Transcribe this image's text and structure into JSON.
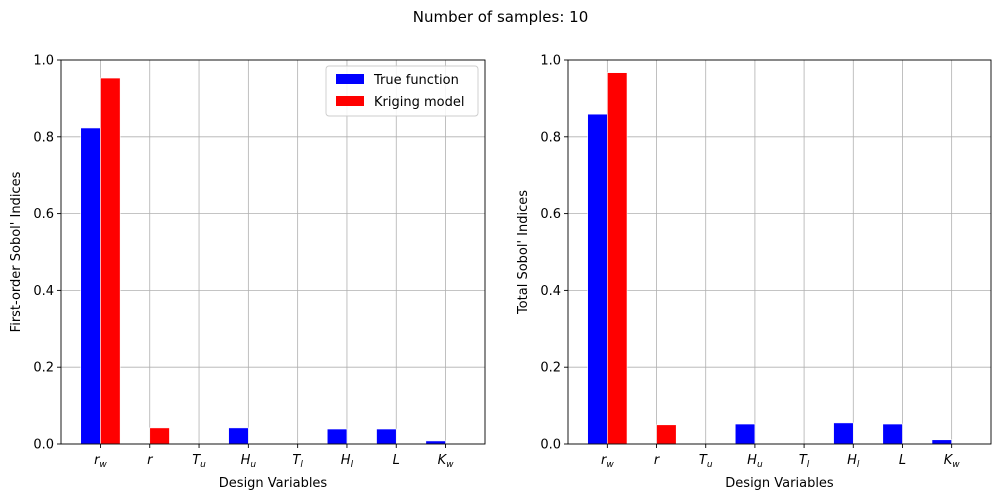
{
  "figure": {
    "title": "Number of samples: 10"
  },
  "chart_data": [
    {
      "type": "bar",
      "ylabel": "First-order Sobol' Indices",
      "xlabel": "Design Variables",
      "ylim": [
        0,
        1.0
      ],
      "yticks": [
        "0.0",
        "0.2",
        "0.4",
        "0.6",
        "0.8",
        "1.0"
      ],
      "categories": [
        {
          "base": "r",
          "sub": "w"
        },
        {
          "base": "r",
          "sub": ""
        },
        {
          "base": "T",
          "sub": "u"
        },
        {
          "base": "H",
          "sub": "u"
        },
        {
          "base": "T",
          "sub": "l"
        },
        {
          "base": "H",
          "sub": "l"
        },
        {
          "base": "L",
          "sub": ""
        },
        {
          "base": "K",
          "sub": "w"
        }
      ],
      "series": [
        {
          "name": "True function",
          "color": "#0000ff",
          "values": [
            0.823,
            0.0,
            0.0,
            0.042,
            0.0,
            0.039,
            0.039,
            0.008
          ]
        },
        {
          "name": "Kriging model",
          "color": "#ff0000",
          "values": [
            0.953,
            0.042,
            0.0,
            0.0,
            0.0,
            0.0,
            0.0,
            0.0
          ]
        }
      ],
      "grid": true,
      "legend": "top-right"
    },
    {
      "type": "bar",
      "ylabel": "Total Sobol' Indices",
      "xlabel": "Design Variables",
      "ylim": [
        0,
        1.0
      ],
      "yticks": [
        "0.0",
        "0.2",
        "0.4",
        "0.6",
        "0.8",
        "1.0"
      ],
      "categories": [
        {
          "base": "r",
          "sub": "w"
        },
        {
          "base": "r",
          "sub": ""
        },
        {
          "base": "T",
          "sub": "u"
        },
        {
          "base": "H",
          "sub": "u"
        },
        {
          "base": "T",
          "sub": "l"
        },
        {
          "base": "H",
          "sub": "l"
        },
        {
          "base": "L",
          "sub": ""
        },
        {
          "base": "K",
          "sub": "w"
        }
      ],
      "series": [
        {
          "name": "True function",
          "color": "#0000ff",
          "values": [
            0.859,
            0.0,
            0.0,
            0.052,
            0.0,
            0.055,
            0.052,
            0.011
          ]
        },
        {
          "name": "Kriging model",
          "color": "#ff0000",
          "values": [
            0.967,
            0.05,
            0.0,
            0.0,
            0.0,
            0.0,
            0.0,
            0.0
          ]
        }
      ],
      "grid": true,
      "legend": "none"
    }
  ]
}
